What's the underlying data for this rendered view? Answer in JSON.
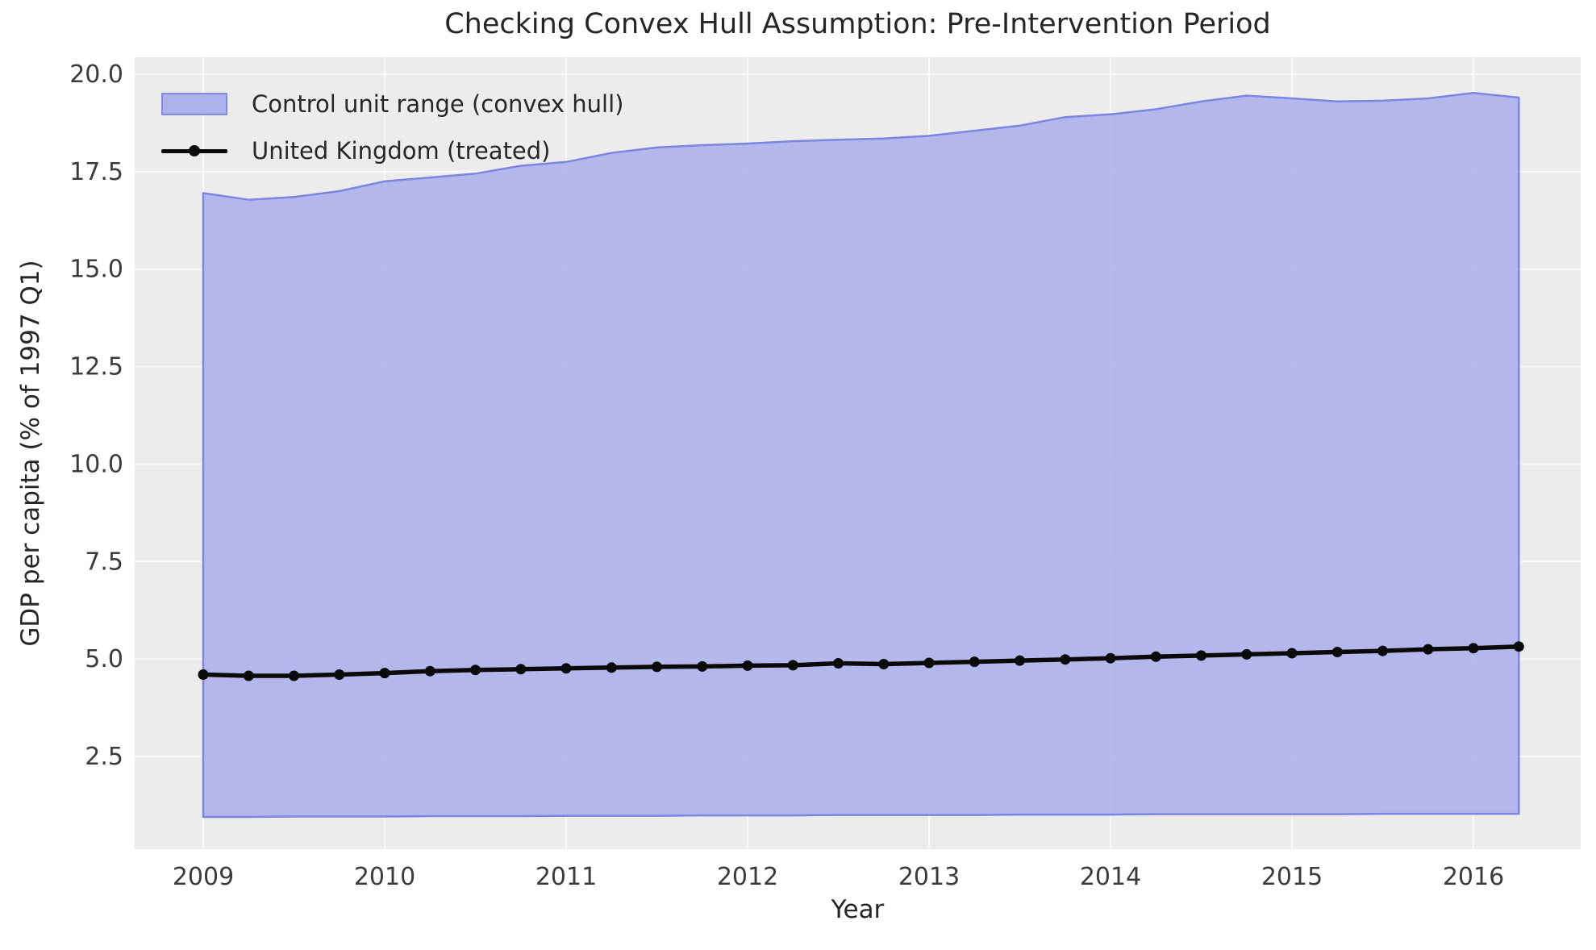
{
  "title": "Checking Convex Hull Assumption: Pre-Intervention Period",
  "colors": {
    "axes_background": "#ececec",
    "grid": "#f9f9f9",
    "band_fill": "#aaaeeb",
    "band_fill_opacity": 0.85,
    "band_edge": "#7d85e3",
    "treated_line": "#0a0a0a",
    "text": "#262626",
    "tick_text": "#3b3b3b"
  },
  "legend": {
    "items": [
      {
        "label": "Control unit range (convex hull)",
        "handle": "patch"
      },
      {
        "label": "United Kingdom (treated)",
        "handle": "line-marker"
      }
    ]
  },
  "chart_data": {
    "type": "area",
    "title": "Checking Convex Hull Assumption: Pre-Intervention Period",
    "xlabel": "Year",
    "ylabel": "GDP per capita (% of 1997 Q1)",
    "grid": true,
    "legend_position": "upper left",
    "xlim": [
      2008.622,
      2016.591
    ],
    "ylim": [
      0.123,
      20.434
    ],
    "xticks": [
      2009,
      2010,
      2011,
      2012,
      2013,
      2014,
      2015,
      2016
    ],
    "xtick_labels": [
      "2009",
      "2010",
      "2011",
      "2012",
      "2013",
      "2014",
      "2015",
      "2016"
    ],
    "yticks": [
      2.5,
      5.0,
      7.5,
      10.0,
      12.5,
      15.0,
      17.5,
      20.0
    ],
    "ytick_labels": [
      "2.5",
      "5.0",
      "7.5",
      "10.0",
      "12.5",
      "15.0",
      "17.5",
      "20.0"
    ],
    "x": [
      2009.0,
      2009.25,
      2009.5,
      2009.75,
      2010.0,
      2010.25,
      2010.5,
      2010.75,
      2011.0,
      2011.25,
      2011.5,
      2011.75,
      2012.0,
      2012.25,
      2012.5,
      2012.75,
      2013.0,
      2013.25,
      2013.5,
      2013.75,
      2014.0,
      2014.25,
      2014.5,
      2014.75,
      2015.0,
      2015.25,
      2015.5,
      2015.75,
      2016.0,
      2016.25
    ],
    "series": [
      {
        "name": "Control unit range (convex hull)",
        "type": "band",
        "upper": [
          16.95,
          16.78,
          16.85,
          17.0,
          17.25,
          17.35,
          17.45,
          17.65,
          17.75,
          17.98,
          18.12,
          18.18,
          18.22,
          18.28,
          18.32,
          18.35,
          18.42,
          18.55,
          18.68,
          18.9,
          18.97,
          19.1,
          19.3,
          19.45,
          19.38,
          19.3,
          19.32,
          19.38,
          19.52,
          19.4
        ],
        "lower": [
          0.95,
          0.95,
          0.96,
          0.96,
          0.96,
          0.97,
          0.97,
          0.97,
          0.98,
          0.98,
          0.98,
          0.99,
          0.99,
          0.99,
          1.0,
          1.0,
          1.0,
          1.0,
          1.01,
          1.01,
          1.01,
          1.02,
          1.02,
          1.02,
          1.02,
          1.02,
          1.03,
          1.03,
          1.03,
          1.03
        ]
      },
      {
        "name": "United Kingdom (treated)",
        "type": "line",
        "values": [
          4.6,
          4.57,
          4.57,
          4.6,
          4.64,
          4.69,
          4.72,
          4.74,
          4.76,
          4.78,
          4.8,
          4.81,
          4.83,
          4.84,
          4.89,
          4.87,
          4.9,
          4.93,
          4.96,
          4.99,
          5.02,
          5.06,
          5.09,
          5.12,
          5.15,
          5.18,
          5.21,
          5.25,
          5.28,
          5.32
        ]
      }
    ]
  }
}
